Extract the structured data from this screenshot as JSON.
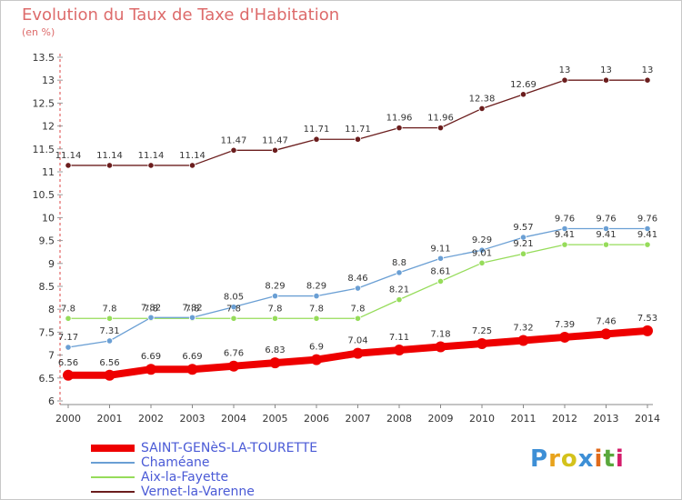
{
  "chart_data": {
    "type": "line",
    "title": "Evolution du Taux de Taxe d'Habitation",
    "unit_label": "(en %)",
    "x": [
      "2000",
      "2001",
      "2002",
      "2003",
      "2004",
      "2005",
      "2006",
      "2007",
      "2008",
      "2009",
      "2010",
      "2011",
      "2012",
      "2013",
      "2014"
    ],
    "y_ticks": [
      "6",
      "6.5",
      "7",
      "7.5",
      "8",
      "8.5",
      "9",
      "9.5",
      "10",
      "10.5",
      "11",
      "11.5",
      "12",
      "12.5",
      "13",
      "13.5"
    ],
    "ylim": [
      6,
      13.5
    ],
    "grid": false,
    "legend_position": "bottom-left",
    "series": [
      {
        "name": "SAINT-GENèS-LA-TOURETTE",
        "color": "#ee0000",
        "values": [
          6.56,
          6.56,
          6.69,
          6.69,
          6.76,
          6.83,
          6.9,
          7.04,
          7.11,
          7.18,
          7.25,
          7.32,
          7.39,
          7.46,
          7.53
        ],
        "labels": [
          "6.56",
          "6.56",
          "6.69",
          "6.69",
          "6.76",
          "6.83",
          "6.9",
          "7.04",
          "7.11",
          "7.18",
          "7.25",
          "7.32",
          "7.39",
          "7.46",
          "7.53"
        ]
      },
      {
        "name": "Chaméane",
        "color": "#6a9fd4",
        "values": [
          7.17,
          7.31,
          7.82,
          7.82,
          8.05,
          8.29,
          8.29,
          8.46,
          8.8,
          9.11,
          9.29,
          9.57,
          9.76,
          9.76,
          9.76
        ],
        "labels": [
          "7.17",
          "7.31",
          "7.82",
          "7.82",
          "8.05",
          "8.29",
          "8.29",
          "8.46",
          "8.8",
          "9.11",
          "9.29",
          "9.57",
          "9.76",
          "9.76",
          "9.76"
        ]
      },
      {
        "name": "Aix-la-Fayette",
        "color": "#96dc5a",
        "values": [
          7.8,
          7.8,
          7.8,
          7.8,
          7.8,
          7.8,
          7.8,
          7.8,
          8.21,
          8.61,
          9.01,
          9.21,
          9.41,
          9.41,
          9.41
        ],
        "labels": [
          "7.8",
          "7.8",
          "7.8",
          "7.8",
          "7.8",
          "7.8",
          "7.8",
          "7.8",
          "8.21",
          "8.61",
          "9.01",
          "9.21",
          "9.41",
          "9.41",
          "9.41"
        ]
      },
      {
        "name": "Vernet-la-Varenne",
        "color": "#6b1d1d",
        "values": [
          11.14,
          11.14,
          11.14,
          11.14,
          11.47,
          11.47,
          11.71,
          11.71,
          11.96,
          11.96,
          12.38,
          12.69,
          13,
          13,
          13
        ],
        "labels": [
          "11.14",
          "11.14",
          "11.14",
          "11.14",
          "11.47",
          "11.47",
          "11.71",
          "11.71",
          "11.96",
          "11.96",
          "12.38",
          "12.69",
          "13",
          "13",
          "13"
        ]
      }
    ]
  },
  "logo": {
    "letters": [
      "P",
      "r",
      "o",
      "x",
      "i",
      "t",
      "i"
    ],
    "colors": [
      "#3d8fd6",
      "#e8a31c",
      "#d4c21c",
      "#3d8fd6",
      "#e06b1c",
      "#5aa83c",
      "#d41c6b"
    ]
  }
}
